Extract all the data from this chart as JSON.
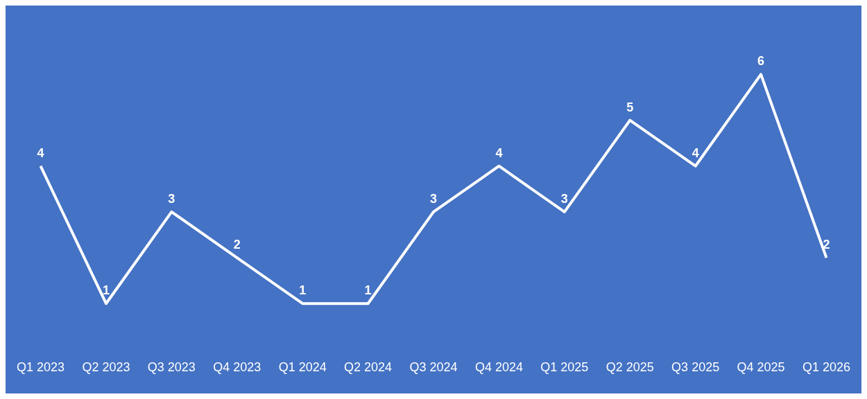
{
  "chart_data": {
    "type": "line",
    "categories": [
      "Q1 2023",
      "Q2 2023",
      "Q3 2023",
      "Q4 2023",
      "Q1 2024",
      "Q2 2024",
      "Q3 2024",
      "Q4 2024",
      "Q1 2025",
      "Q2 2025",
      "Q3 2025",
      "Q4 2025",
      "Q1 2026"
    ],
    "series": [
      {
        "color": "#ffffff",
        "values": [
          4,
          1,
          3,
          2,
          1,
          1,
          3,
          4,
          3,
          5,
          4,
          6,
          2
        ]
      }
    ],
    "data_labels": true,
    "grid": false,
    "legend": false,
    "marker": "none",
    "line_style": "solid",
    "tick_labels": "x"
  }
}
